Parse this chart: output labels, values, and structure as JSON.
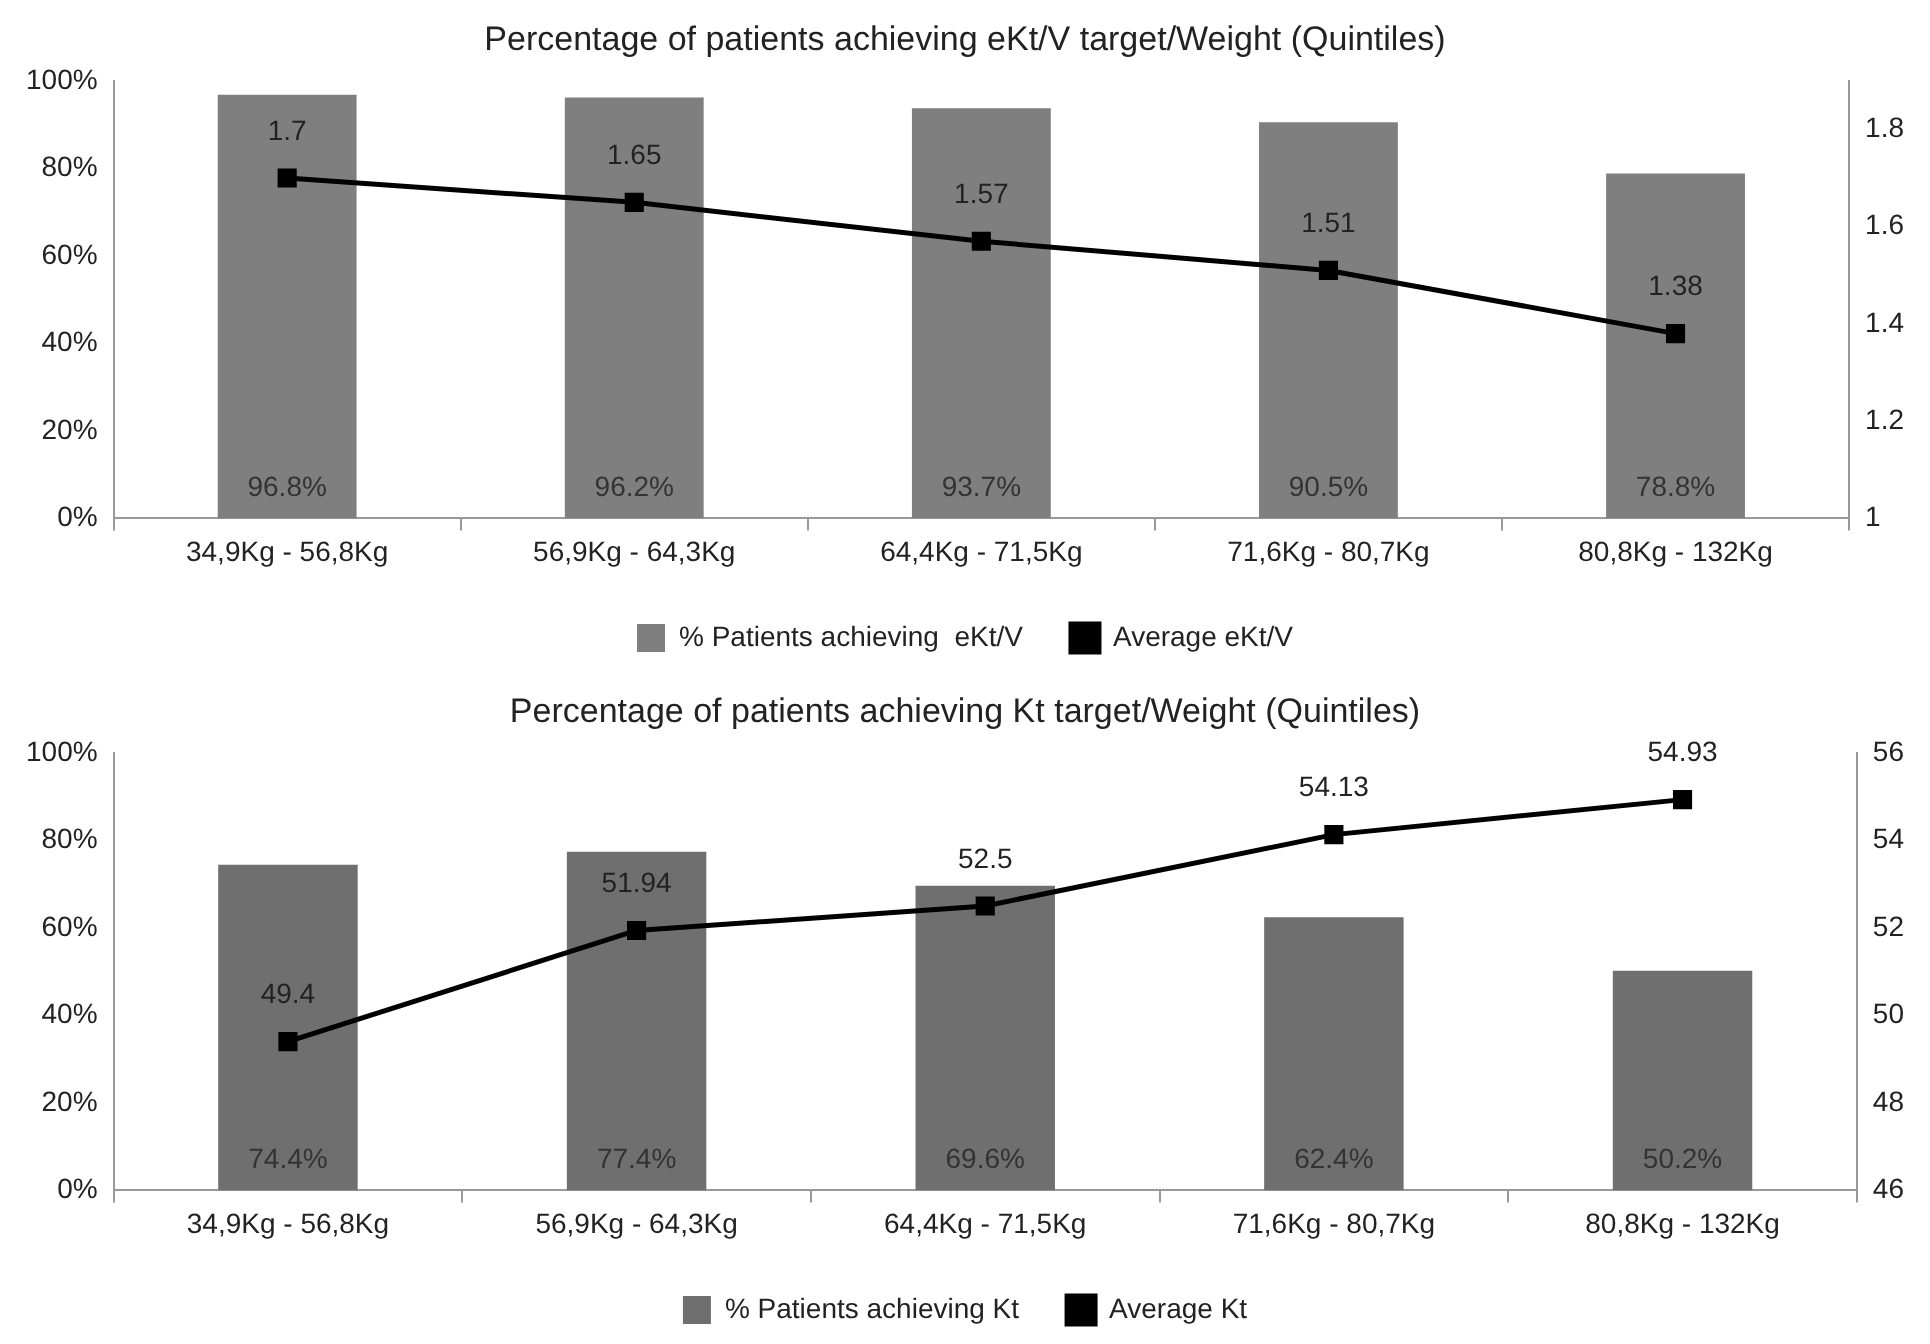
{
  "chart_data": [
    {
      "type": "bar",
      "title": "Percentage of patients achieving eKt/V target/Weight (Quintiles)",
      "categories": [
        "34,9Kg - 56,8Kg",
        "56,9Kg - 64,3Kg",
        "64,4Kg - 71,5Kg",
        "71,6Kg - 80,7Kg",
        "80,8Kg - 132Kg"
      ],
      "series": [
        {
          "name": "% Patients achieving  eKt/V",
          "color": "#7f7f7f",
          "values": [
            96.8,
            96.2,
            93.7,
            90.5,
            78.8
          ],
          "value_labels": [
            "96.8%",
            "96.2%",
            "93.7%",
            "90.5%",
            "78.8%"
          ]
        },
        {
          "name": "Average eKt/V",
          "type": "line",
          "axis": "y2",
          "color": "#000000",
          "marker": "square",
          "values": [
            1.7,
            1.65,
            1.57,
            1.51,
            1.38
          ],
          "value_labels": [
            "1.7",
            "1.65",
            "1.57",
            "1.51",
            "1.38"
          ]
        }
      ],
      "ylim": [
        0,
        100
      ],
      "yticks": [
        {
          "value": 0,
          "label": "0%"
        },
        {
          "value": 20,
          "label": "20%"
        },
        {
          "value": 40,
          "label": "40%"
        },
        {
          "value": 60,
          "label": "60%"
        },
        {
          "value": 80,
          "label": "80%"
        },
        {
          "value": 100,
          "label": "100%"
        }
      ],
      "y2lim": [
        1,
        1.9
      ],
      "y2ticks": [
        1,
        1.2,
        1.4,
        1.6,
        1.8
      ],
      "grid": false,
      "legend": "bottom"
    },
    {
      "type": "bar",
      "title": "Percentage of patients achieving Kt target/Weight (Quintiles)",
      "categories": [
        "34,9Kg - 56,8Kg",
        "56,9Kg - 64,3Kg",
        "64,4Kg - 71,5Kg",
        "71,6Kg - 80,7Kg",
        "80,8Kg - 132Kg"
      ],
      "series": [
        {
          "name": "% Patients achieving Kt",
          "color": "#6f6f6f",
          "values": [
            74.4,
            77.4,
            69.6,
            62.4,
            50.2
          ],
          "value_labels": [
            "74.4%",
            "77.4%",
            "69.6%",
            "62.4%",
            "50.2%"
          ]
        },
        {
          "name": "Average Kt",
          "type": "line",
          "axis": "y2",
          "color": "#000000",
          "marker": "square",
          "values": [
            49.4,
            51.94,
            52.5,
            54.13,
            54.93
          ],
          "value_labels": [
            "49.4",
            "51.94",
            "52.5",
            "54.13",
            "54.93"
          ]
        }
      ],
      "ylim": [
        0,
        100
      ],
      "yticks": [
        {
          "value": 0,
          "label": "0%"
        },
        {
          "value": 20,
          "label": "20%"
        },
        {
          "value": 40,
          "label": "40%"
        },
        {
          "value": 60,
          "label": "60%"
        },
        {
          "value": 80,
          "label": "80%"
        },
        {
          "value": 100,
          "label": "100%"
        }
      ],
      "y2lim": [
        46,
        56
      ],
      "y2ticks": [
        46,
        48,
        50,
        52,
        54,
        56
      ],
      "grid": false,
      "legend": "bottom"
    }
  ]
}
